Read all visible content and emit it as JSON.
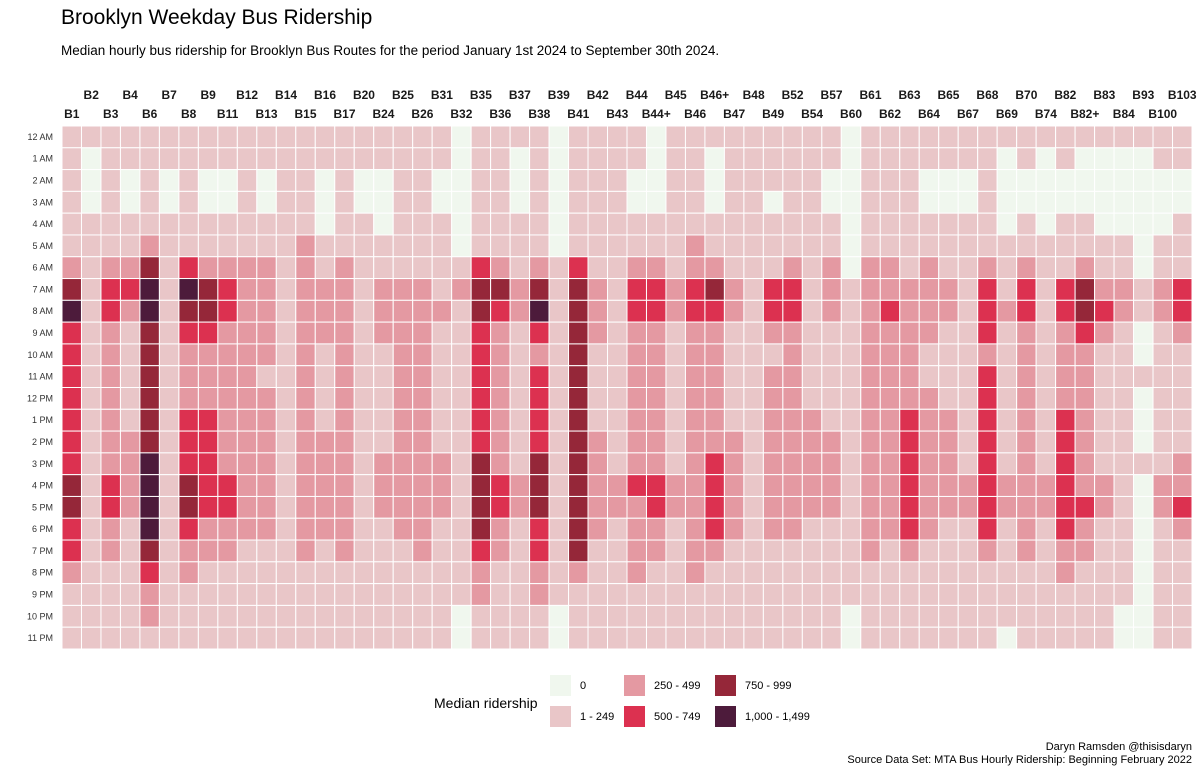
{
  "title": "Brooklyn Weekday Bus Ridership",
  "subtitle": "Median hourly bus ridership for Brooklyn Bus Routes for the period January 1st 2024 to September 30th 2024.",
  "credit": {
    "author": "Daryn Ramsden @thisisdaryn",
    "source": "Source Data Set: MTA Bus Hourly Ridership: Beginning February 2022"
  },
  "colors": {
    "0": "#f0f7ee",
    "1": "#e9c6c8",
    "2": "#e499a2",
    "3": "#dc3150",
    "4": "#952739",
    "5": "#4d1b3b"
  },
  "chart_data": {
    "type": "heatmap",
    "title": "Brooklyn Weekday Bus Ridership",
    "subtitle": "Median hourly bus ridership for Brooklyn Bus Routes for the period January 1st 2024 to September 30th 2024.",
    "x": [
      "B1",
      "B2",
      "B3",
      "B4",
      "B6",
      "B7",
      "B8",
      "B9",
      "B11",
      "B12",
      "B13",
      "B14",
      "B15",
      "B16",
      "B17",
      "B20",
      "B24",
      "B25",
      "B26",
      "B31",
      "B32",
      "B35",
      "B36",
      "B37",
      "B38",
      "B39",
      "B41",
      "B42",
      "B43",
      "B44",
      "B44+",
      "B45",
      "B46",
      "B46+",
      "B47",
      "B48",
      "B49",
      "B52",
      "B54",
      "B57",
      "B60",
      "B61",
      "B62",
      "B63",
      "B64",
      "B65",
      "B67",
      "B68",
      "B69",
      "B70",
      "B74",
      "B82",
      "B82+",
      "B83",
      "B84",
      "B93",
      "B100",
      "B103"
    ],
    "y": [
      "12 AM",
      "1 AM",
      "2 AM",
      "3 AM",
      "4 AM",
      "5 AM",
      "6 AM",
      "7 AM",
      "8 AM",
      "9 AM",
      "10 AM",
      "11 AM",
      "12 PM",
      "1 PM",
      "2 PM",
      "3 PM",
      "4 PM",
      "5 PM",
      "6 PM",
      "7 PM",
      "8 PM",
      "9 PM",
      "10 PM",
      "11 PM"
    ],
    "value_bins": [
      "0",
      "1 - 249",
      "250 - 499",
      "500 - 749",
      "750 - 999",
      "1,000 - 1,499"
    ],
    "legend_title": "Median ridership",
    "legend_position": "bottom",
    "values": [
      [
        1,
        1,
        1,
        1,
        1,
        1,
        1,
        1,
        1,
        1,
        1,
        1,
        1,
        1,
        1,
        1,
        1,
        1,
        1,
        1,
        0,
        1,
        1,
        1,
        1,
        0,
        1,
        1,
        1,
        1,
        0,
        1,
        1,
        1,
        1,
        1,
        1,
        1,
        1,
        1,
        0,
        1,
        1,
        1,
        1,
        1,
        1,
        1,
        1,
        1,
        1,
        1,
        1,
        1,
        1,
        1,
        1,
        1
      ],
      [
        1,
        0,
        1,
        1,
        1,
        1,
        1,
        1,
        1,
        1,
        1,
        1,
        1,
        1,
        1,
        1,
        1,
        1,
        1,
        1,
        0,
        1,
        1,
        0,
        1,
        0,
        1,
        1,
        1,
        1,
        0,
        1,
        1,
        0,
        1,
        1,
        1,
        1,
        1,
        1,
        0,
        1,
        1,
        1,
        1,
        1,
        1,
        1,
        0,
        1,
        0,
        1,
        0,
        0,
        0,
        0,
        1,
        1
      ],
      [
        1,
        0,
        1,
        0,
        1,
        0,
        1,
        0,
        0,
        1,
        0,
        1,
        1,
        0,
        1,
        0,
        0,
        1,
        1,
        0,
        0,
        1,
        1,
        0,
        1,
        0,
        1,
        1,
        1,
        0,
        0,
        1,
        1,
        0,
        1,
        1,
        1,
        1,
        1,
        0,
        0,
        1,
        1,
        1,
        0,
        0,
        0,
        1,
        0,
        0,
        0,
        0,
        0,
        0,
        0,
        0,
        0,
        0
      ],
      [
        1,
        0,
        1,
        0,
        1,
        0,
        1,
        0,
        0,
        1,
        0,
        1,
        1,
        0,
        1,
        0,
        0,
        1,
        1,
        0,
        0,
        1,
        1,
        0,
        1,
        0,
        1,
        1,
        1,
        0,
        0,
        1,
        1,
        0,
        1,
        1,
        0,
        1,
        1,
        0,
        0,
        1,
        1,
        1,
        0,
        0,
        0,
        1,
        0,
        0,
        0,
        0,
        0,
        0,
        0,
        0,
        0,
        0
      ],
      [
        1,
        1,
        1,
        1,
        1,
        1,
        1,
        1,
        1,
        1,
        1,
        1,
        1,
        0,
        1,
        1,
        0,
        1,
        1,
        1,
        0,
        1,
        1,
        1,
        1,
        0,
        1,
        1,
        1,
        1,
        1,
        1,
        1,
        1,
        1,
        1,
        1,
        1,
        1,
        1,
        0,
        1,
        1,
        1,
        1,
        1,
        1,
        1,
        0,
        1,
        0,
        1,
        1,
        0,
        0,
        0,
        0,
        1
      ],
      [
        1,
        1,
        1,
        1,
        2,
        1,
        1,
        1,
        1,
        1,
        1,
        1,
        2,
        1,
        1,
        1,
        1,
        1,
        1,
        1,
        0,
        1,
        1,
        1,
        1,
        0,
        1,
        1,
        1,
        1,
        1,
        1,
        2,
        1,
        1,
        1,
        1,
        1,
        1,
        1,
        0,
        1,
        1,
        1,
        1,
        1,
        1,
        1,
        1,
        1,
        1,
        1,
        1,
        1,
        1,
        0,
        1,
        1
      ],
      [
        2,
        1,
        2,
        2,
        4,
        1,
        3,
        2,
        2,
        2,
        2,
        1,
        2,
        1,
        2,
        1,
        1,
        1,
        1,
        1,
        1,
        3,
        2,
        1,
        2,
        1,
        3,
        1,
        1,
        2,
        2,
        1,
        2,
        2,
        1,
        1,
        1,
        2,
        1,
        2,
        0,
        2,
        2,
        1,
        2,
        1,
        1,
        2,
        1,
        2,
        1,
        1,
        2,
        1,
        1,
        0,
        1,
        1
      ],
      [
        4,
        1,
        3,
        3,
        5,
        1,
        5,
        4,
        3,
        2,
        2,
        1,
        2,
        2,
        2,
        1,
        2,
        2,
        2,
        1,
        2,
        4,
        4,
        2,
        4,
        1,
        4,
        2,
        1,
        3,
        3,
        2,
        3,
        4,
        2,
        1,
        3,
        3,
        1,
        2,
        1,
        2,
        2,
        2,
        2,
        2,
        1,
        3,
        1,
        3,
        1,
        3,
        4,
        2,
        2,
        1,
        2,
        3
      ],
      [
        5,
        1,
        3,
        2,
        5,
        1,
        4,
        4,
        3,
        2,
        2,
        1,
        2,
        2,
        2,
        1,
        2,
        2,
        2,
        2,
        1,
        4,
        3,
        2,
        5,
        1,
        4,
        2,
        1,
        3,
        3,
        2,
        3,
        3,
        2,
        1,
        3,
        3,
        1,
        2,
        1,
        2,
        3,
        2,
        2,
        2,
        1,
        3,
        2,
        3,
        1,
        3,
        4,
        3,
        2,
        1,
        2,
        3
      ],
      [
        3,
        1,
        2,
        1,
        4,
        1,
        3,
        3,
        2,
        2,
        2,
        1,
        2,
        2,
        2,
        1,
        2,
        2,
        2,
        1,
        1,
        3,
        2,
        1,
        3,
        1,
        4,
        2,
        1,
        2,
        2,
        1,
        2,
        2,
        1,
        1,
        2,
        2,
        1,
        1,
        1,
        2,
        2,
        2,
        2,
        1,
        1,
        3,
        1,
        2,
        1,
        2,
        3,
        2,
        1,
        0,
        1,
        2
      ],
      [
        3,
        1,
        2,
        1,
        4,
        1,
        2,
        2,
        2,
        2,
        2,
        1,
        2,
        1,
        2,
        1,
        1,
        2,
        2,
        1,
        1,
        3,
        2,
        1,
        2,
        1,
        4,
        1,
        1,
        2,
        2,
        1,
        2,
        2,
        1,
        1,
        1,
        2,
        1,
        1,
        1,
        2,
        2,
        2,
        1,
        1,
        1,
        2,
        1,
        2,
        1,
        2,
        2,
        1,
        1,
        0,
        1,
        1
      ],
      [
        3,
        1,
        2,
        1,
        4,
        1,
        2,
        2,
        2,
        2,
        1,
        1,
        2,
        1,
        2,
        1,
        1,
        2,
        2,
        1,
        1,
        3,
        2,
        1,
        3,
        1,
        4,
        1,
        1,
        2,
        2,
        1,
        2,
        2,
        1,
        1,
        2,
        2,
        1,
        1,
        1,
        2,
        2,
        2,
        1,
        1,
        1,
        3,
        1,
        2,
        1,
        2,
        2,
        1,
        1,
        1,
        1,
        1
      ],
      [
        3,
        1,
        2,
        1,
        4,
        1,
        2,
        2,
        2,
        2,
        2,
        1,
        2,
        1,
        2,
        1,
        1,
        2,
        2,
        1,
        1,
        3,
        2,
        1,
        3,
        1,
        4,
        1,
        1,
        2,
        2,
        1,
        2,
        2,
        1,
        1,
        2,
        2,
        1,
        1,
        1,
        2,
        2,
        2,
        2,
        1,
        1,
        3,
        1,
        2,
        1,
        2,
        2,
        1,
        1,
        0,
        1,
        1
      ],
      [
        3,
        1,
        2,
        1,
        4,
        1,
        3,
        3,
        2,
        2,
        2,
        1,
        2,
        1,
        2,
        1,
        1,
        2,
        2,
        1,
        1,
        3,
        2,
        1,
        3,
        1,
        4,
        1,
        1,
        2,
        2,
        1,
        2,
        2,
        1,
        1,
        2,
        2,
        2,
        1,
        1,
        2,
        2,
        3,
        2,
        2,
        1,
        3,
        1,
        2,
        1,
        3,
        2,
        1,
        1,
        0,
        1,
        1
      ],
      [
        3,
        1,
        2,
        2,
        4,
        1,
        3,
        3,
        2,
        2,
        2,
        1,
        2,
        2,
        2,
        1,
        1,
        2,
        2,
        1,
        1,
        3,
        2,
        1,
        3,
        1,
        4,
        2,
        1,
        2,
        2,
        1,
        2,
        2,
        2,
        1,
        2,
        2,
        2,
        2,
        1,
        2,
        2,
        3,
        2,
        2,
        1,
        3,
        1,
        2,
        1,
        3,
        2,
        1,
        1,
        0,
        1,
        1
      ],
      [
        3,
        1,
        2,
        2,
        5,
        1,
        3,
        3,
        2,
        2,
        2,
        1,
        2,
        2,
        2,
        1,
        2,
        2,
        2,
        2,
        1,
        4,
        2,
        1,
        4,
        1,
        4,
        2,
        1,
        2,
        2,
        1,
        2,
        3,
        2,
        1,
        2,
        2,
        2,
        2,
        1,
        2,
        2,
        3,
        2,
        2,
        1,
        3,
        1,
        2,
        1,
        3,
        2,
        1,
        1,
        1,
        1,
        2
      ],
      [
        4,
        1,
        3,
        2,
        5,
        1,
        4,
        3,
        3,
        2,
        2,
        1,
        2,
        2,
        2,
        1,
        2,
        2,
        2,
        2,
        1,
        4,
        3,
        2,
        4,
        1,
        4,
        2,
        2,
        3,
        3,
        2,
        2,
        3,
        2,
        1,
        2,
        2,
        2,
        2,
        1,
        2,
        2,
        3,
        2,
        2,
        2,
        3,
        2,
        2,
        2,
        3,
        2,
        2,
        1,
        0,
        2,
        2
      ],
      [
        4,
        1,
        3,
        2,
        5,
        1,
        4,
        3,
        3,
        2,
        2,
        1,
        2,
        2,
        2,
        1,
        2,
        2,
        2,
        2,
        1,
        4,
        3,
        2,
        4,
        1,
        4,
        2,
        2,
        2,
        3,
        2,
        2,
        3,
        2,
        1,
        2,
        2,
        2,
        2,
        1,
        2,
        2,
        3,
        2,
        2,
        2,
        3,
        2,
        2,
        2,
        3,
        3,
        2,
        1,
        0,
        2,
        3
      ],
      [
        3,
        1,
        2,
        1,
        5,
        1,
        3,
        2,
        2,
        2,
        2,
        1,
        2,
        2,
        2,
        1,
        1,
        2,
        2,
        1,
        1,
        4,
        2,
        1,
        3,
        1,
        4,
        2,
        1,
        2,
        2,
        1,
        2,
        3,
        2,
        1,
        2,
        2,
        1,
        1,
        1,
        2,
        2,
        3,
        2,
        1,
        1,
        3,
        1,
        2,
        1,
        3,
        2,
        1,
        1,
        0,
        1,
        2
      ],
      [
        3,
        1,
        2,
        1,
        4,
        1,
        2,
        2,
        2,
        1,
        1,
        1,
        2,
        1,
        2,
        1,
        1,
        1,
        2,
        1,
        1,
        3,
        2,
        1,
        3,
        1,
        4,
        1,
        1,
        2,
        2,
        1,
        2,
        2,
        1,
        1,
        1,
        1,
        1,
        1,
        1,
        2,
        1,
        2,
        1,
        1,
        1,
        2,
        1,
        2,
        1,
        2,
        2,
        1,
        1,
        0,
        1,
        1
      ],
      [
        2,
        1,
        1,
        1,
        3,
        1,
        2,
        1,
        1,
        1,
        1,
        1,
        1,
        1,
        1,
        1,
        1,
        1,
        1,
        1,
        1,
        2,
        1,
        1,
        2,
        1,
        2,
        1,
        1,
        2,
        1,
        1,
        2,
        1,
        1,
        1,
        1,
        1,
        1,
        1,
        1,
        1,
        1,
        1,
        1,
        1,
        1,
        1,
        1,
        1,
        1,
        2,
        1,
        1,
        1,
        0,
        1,
        1
      ],
      [
        1,
        1,
        1,
        1,
        2,
        1,
        1,
        1,
        1,
        1,
        1,
        1,
        1,
        1,
        1,
        1,
        1,
        1,
        1,
        1,
        1,
        2,
        1,
        1,
        2,
        1,
        1,
        1,
        1,
        1,
        1,
        1,
        1,
        1,
        1,
        1,
        1,
        1,
        1,
        1,
        1,
        1,
        1,
        1,
        1,
        1,
        1,
        1,
        1,
        1,
        1,
        1,
        1,
        1,
        1,
        0,
        1,
        1
      ],
      [
        1,
        1,
        1,
        1,
        2,
        1,
        1,
        1,
        1,
        1,
        1,
        1,
        1,
        1,
        1,
        1,
        1,
        1,
        1,
        1,
        0,
        1,
        1,
        1,
        1,
        0,
        1,
        1,
        1,
        1,
        1,
        1,
        1,
        1,
        1,
        1,
        1,
        1,
        1,
        1,
        0,
        1,
        1,
        1,
        1,
        1,
        1,
        1,
        1,
        1,
        1,
        1,
        1,
        1,
        0,
        0,
        1,
        1
      ],
      [
        1,
        1,
        1,
        1,
        1,
        1,
        1,
        1,
        1,
        1,
        1,
        1,
        1,
        1,
        1,
        1,
        1,
        1,
        1,
        1,
        0,
        1,
        1,
        1,
        1,
        0,
        1,
        1,
        1,
        1,
        1,
        1,
        1,
        1,
        1,
        1,
        1,
        1,
        1,
        1,
        0,
        1,
        1,
        1,
        1,
        1,
        1,
        1,
        0,
        1,
        1,
        1,
        1,
        1,
        0,
        0,
        1,
        1
      ]
    ]
  }
}
